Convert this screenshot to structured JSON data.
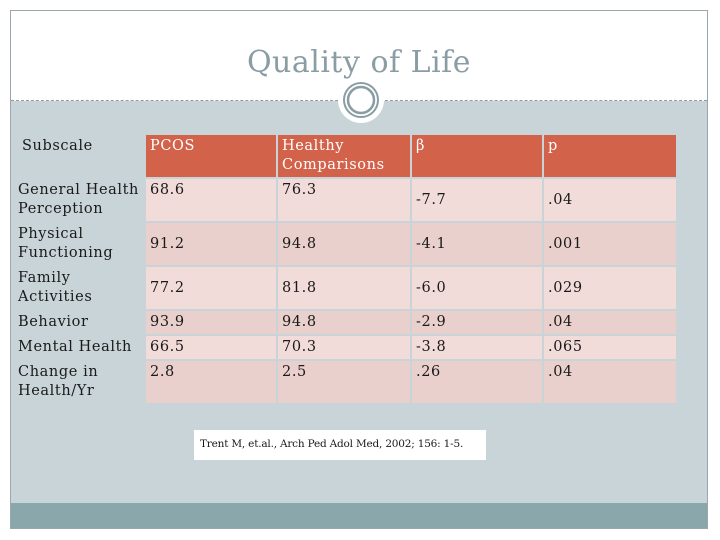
{
  "slide": {
    "title": "Quality of Life",
    "citation": "Trent M, et.al., Arch Ped Adol Med, 2002; 156: 1-5."
  },
  "table": {
    "headers": [
      "Subscale",
      "PCOS",
      "Healthy Comparisons",
      "β",
      "p"
    ],
    "rows": [
      [
        "General Health Perception",
        "68.6",
        "76.3",
        "-7.7",
        ".04"
      ],
      [
        "Physical Functioning",
        "91.2",
        "94.8",
        "-4.1",
        ".001"
      ],
      [
        "Family Activities",
        "77.2",
        "81.8",
        "-6.0",
        ".029"
      ],
      [
        "Behavior",
        "93.9",
        "94.8",
        "-2.9",
        ".04"
      ],
      [
        "Mental Health",
        "66.5",
        "70.3",
        "-3.8",
        ".065"
      ],
      [
        "Change in Health/Yr",
        "2.8",
        "2.5",
        ".26",
        ".04"
      ]
    ]
  },
  "colors": {
    "header_fill": "#d2624a",
    "row_fill_light": "#f2dcda",
    "row_fill_dark": "#ead0cd",
    "slide_background": "#c8d4d8",
    "title_color": "#8a9da4",
    "footer_band": "#8aa8ac"
  }
}
